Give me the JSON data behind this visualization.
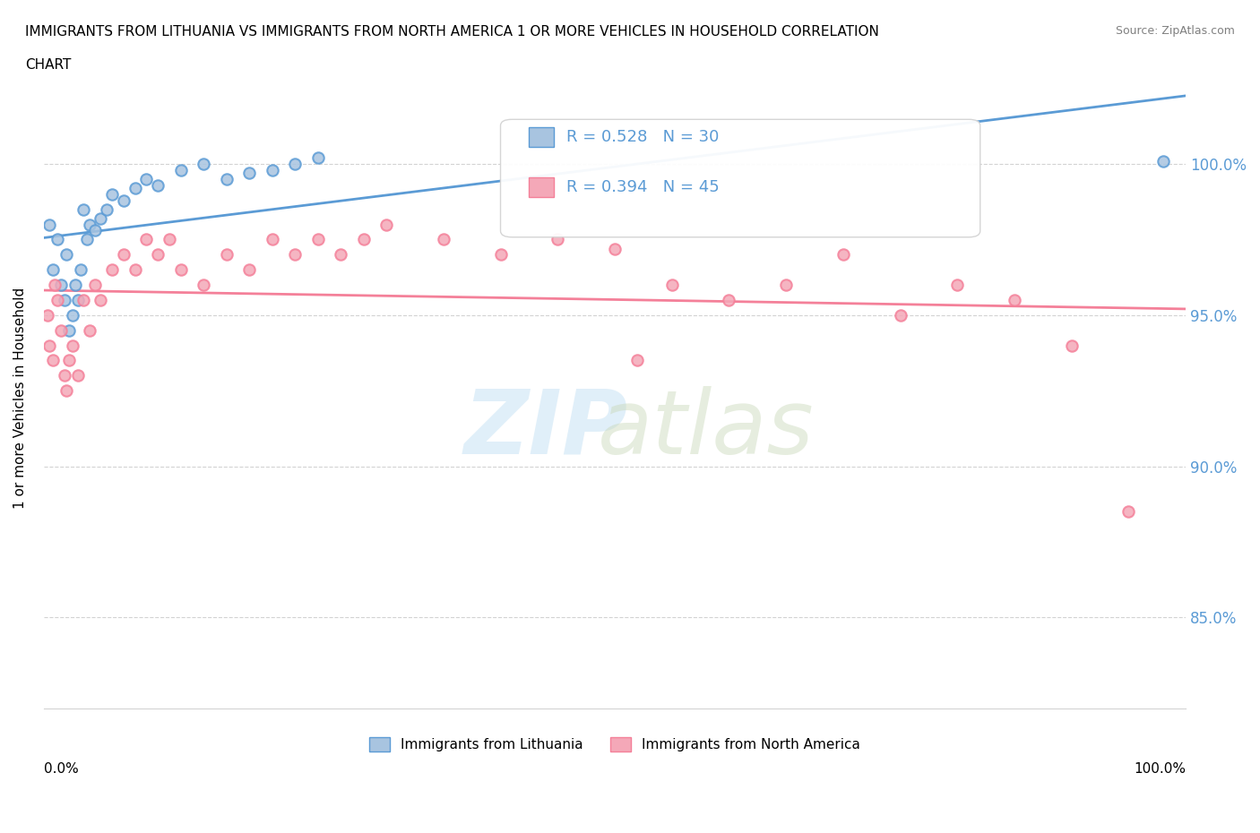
{
  "title_line1": "IMMIGRANTS FROM LITHUANIA VS IMMIGRANTS FROM NORTH AMERICA 1 OR MORE VEHICLES IN HOUSEHOLD CORRELATION",
  "title_line2": "CHART",
  "source": "Source: ZipAtlas.com",
  "ylabel": "1 or more Vehicles in Household",
  "ytick_values": [
    85.0,
    90.0,
    95.0,
    100.0
  ],
  "xlim": [
    0.0,
    100.0
  ],
  "ylim": [
    82.0,
    102.5
  ],
  "legend_label1": "Immigrants from Lithuania",
  "legend_label2": "Immigrants from North America",
  "R1": 0.528,
  "N1": 30,
  "R2": 0.394,
  "N2": 45,
  "color1": "#a8c4e0",
  "color2": "#f4a8b8",
  "line_color1": "#5b9bd5",
  "line_color2": "#f48099",
  "scatter1_x": [
    0.5,
    0.8,
    1.2,
    1.5,
    1.8,
    2.0,
    2.2,
    2.5,
    2.8,
    3.0,
    3.2,
    3.5,
    3.8,
    4.0,
    4.5,
    5.0,
    5.5,
    6.0,
    7.0,
    8.0,
    9.0,
    10.0,
    12.0,
    14.0,
    16.0,
    18.0,
    20.0,
    22.0,
    24.0,
    98.0
  ],
  "scatter1_y": [
    98.0,
    96.5,
    97.5,
    96.0,
    95.5,
    97.0,
    94.5,
    95.0,
    96.0,
    95.5,
    96.5,
    98.5,
    97.5,
    98.0,
    97.8,
    98.2,
    98.5,
    99.0,
    98.8,
    99.2,
    99.5,
    99.3,
    99.8,
    100.0,
    99.5,
    99.7,
    99.8,
    100.0,
    100.2,
    100.1
  ],
  "scatter2_x": [
    0.3,
    0.5,
    0.8,
    1.0,
    1.2,
    1.5,
    1.8,
    2.0,
    2.2,
    2.5,
    3.0,
    3.5,
    4.0,
    4.5,
    5.0,
    6.0,
    7.0,
    8.0,
    9.0,
    10.0,
    11.0,
    12.0,
    14.0,
    16.0,
    18.0,
    20.0,
    22.0,
    24.0,
    26.0,
    28.0,
    30.0,
    35.0,
    40.0,
    45.0,
    50.0,
    55.0,
    60.0,
    65.0,
    70.0,
    75.0,
    80.0,
    85.0,
    90.0,
    95.0,
    52.0
  ],
  "scatter2_y": [
    95.0,
    94.0,
    93.5,
    96.0,
    95.5,
    94.5,
    93.0,
    92.5,
    93.5,
    94.0,
    93.0,
    95.5,
    94.5,
    96.0,
    95.5,
    96.5,
    97.0,
    96.5,
    97.5,
    97.0,
    97.5,
    96.5,
    96.0,
    97.0,
    96.5,
    97.5,
    97.0,
    97.5,
    97.0,
    97.5,
    98.0,
    97.5,
    97.0,
    97.5,
    97.2,
    96.0,
    95.5,
    96.0,
    97.0,
    95.0,
    96.0,
    95.5,
    94.0,
    88.5,
    93.5
  ]
}
